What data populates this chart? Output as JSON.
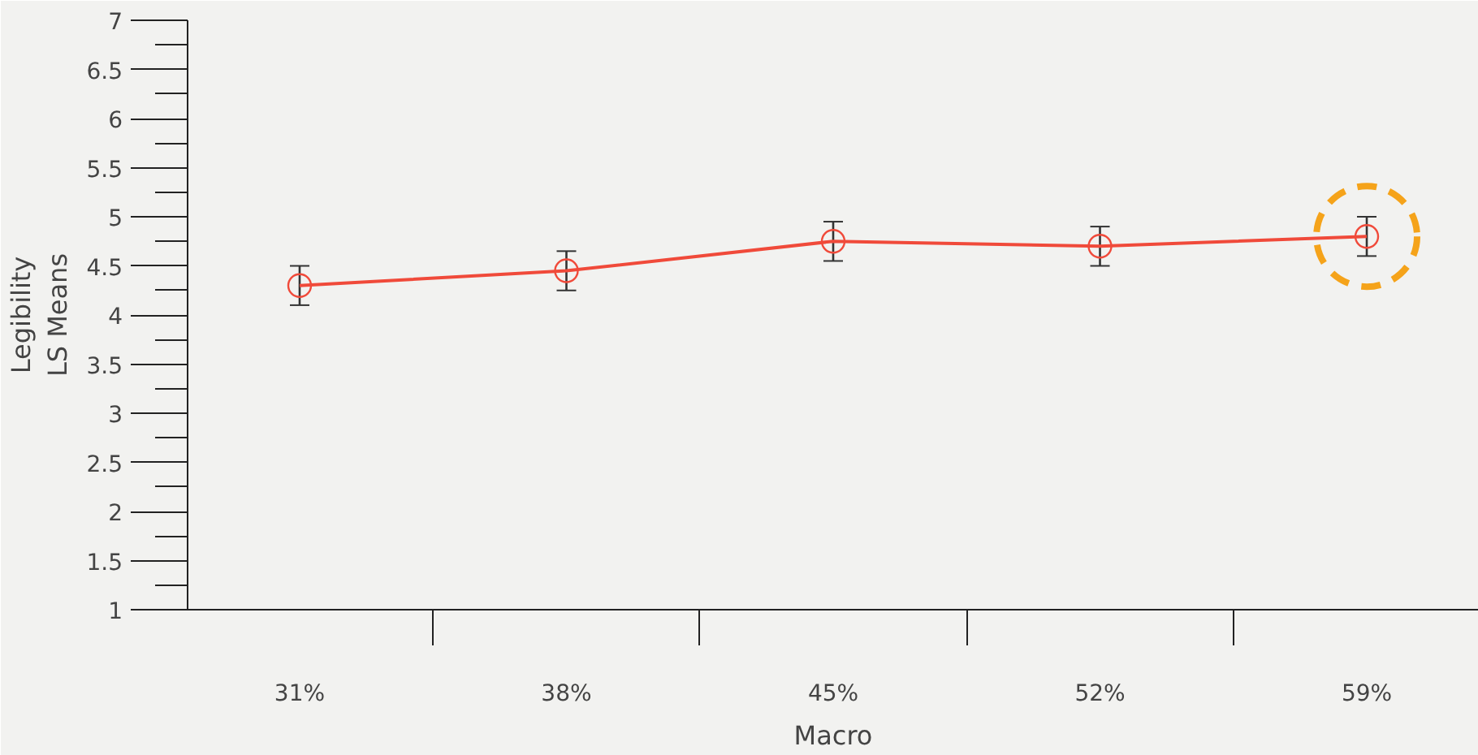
{
  "chart_data": {
    "type": "line",
    "xlabel": "Macro",
    "ylabel": "Legibility\nLS Means",
    "categories": [
      "31%",
      "38%",
      "45%",
      "52%",
      "59%"
    ],
    "series": [
      {
        "color": "#f04a3a",
        "values": [
          4.3,
          4.45,
          4.75,
          4.7,
          4.8
        ],
        "errors": [
          0.2,
          0.2,
          0.2,
          0.2,
          0.2
        ]
      }
    ],
    "marker": "circle",
    "line_style": "solid",
    "grid": false,
    "ylim": [
      1,
      7
    ],
    "yticks": [
      1,
      1.5,
      2,
      2.5,
      3,
      3.5,
      4,
      4.5,
      5,
      5.5,
      6,
      6.5,
      7
    ]
  }
}
